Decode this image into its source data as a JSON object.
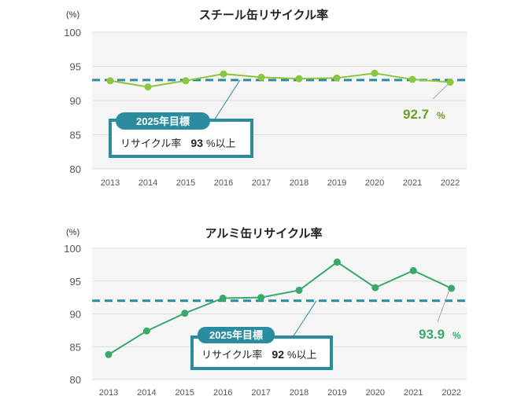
{
  "chart_data": [
    {
      "type": "line",
      "title": "スチール缶リサイクル率",
      "unit_label": "(%)",
      "categories": [
        "2013",
        "2014",
        "2015",
        "2016",
        "2017",
        "2018",
        "2019",
        "2020",
        "2021",
        "2022"
      ],
      "values": [
        92.9,
        92.0,
        92.9,
        93.9,
        93.4,
        93.2,
        93.3,
        94.0,
        93.1,
        92.7
      ],
      "ylim": [
        80,
        100
      ],
      "yticks": [
        80,
        85,
        90,
        95,
        100
      ],
      "target_value": 93,
      "target_badge": "2025年目標",
      "target_text": "リサイクル率",
      "target_num": "93",
      "target_suffix": "%以上",
      "callout_value": "92.7",
      "callout_unit": "%",
      "color": "#8cc63f",
      "callout_color": "#6aa12a",
      "target_color": "#2a8c9e"
    },
    {
      "type": "line",
      "title": "アルミ缶リサイクル率",
      "unit_label": "(%)",
      "categories": [
        "2013",
        "2014",
        "2015",
        "2016",
        "2017",
        "2018",
        "2019",
        "2020",
        "2021",
        "2022"
      ],
      "values": [
        83.8,
        87.4,
        90.1,
        92.4,
        92.5,
        93.6,
        97.9,
        94.0,
        96.6,
        93.9
      ],
      "ylim": [
        80,
        100
      ],
      "yticks": [
        80,
        85,
        90,
        95,
        100
      ],
      "target_value": 92,
      "target_badge": "2025年目標",
      "target_text": "リサイクル率",
      "target_num": "92",
      "target_suffix": "%以上",
      "callout_value": "93.9",
      "callout_unit": "%",
      "color": "#3aa86b",
      "callout_color": "#3aa86b",
      "target_color": "#2a8c9e"
    }
  ]
}
